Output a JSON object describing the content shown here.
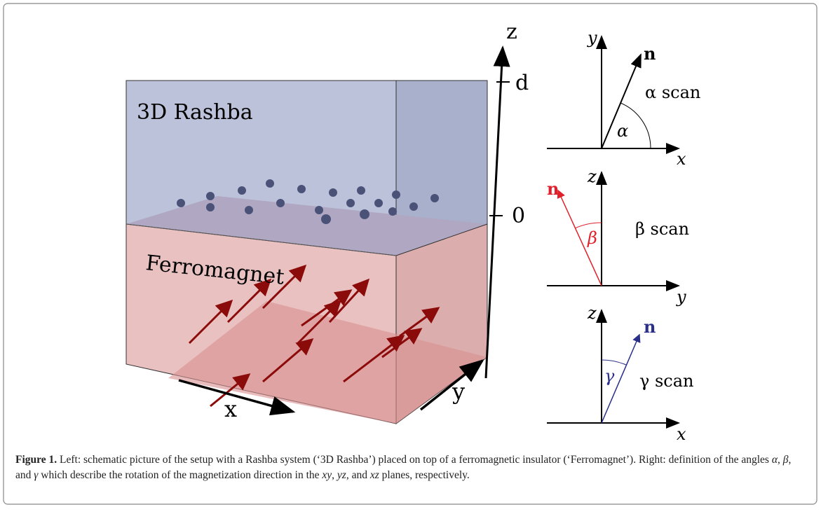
{
  "figure": {
    "left": {
      "z_axis": "z",
      "tick_top": "d",
      "tick_bottom": "0",
      "top_layer": "3D Rashba",
      "bottom_layer": "Ferromagnet",
      "x_axis": "x",
      "y_axis": "y"
    },
    "panels": [
      {
        "vertical": "y",
        "horizontal": "x",
        "vector": "n",
        "scan": "α scan",
        "angle": "α"
      },
      {
        "vertical": "z",
        "horizontal": "y",
        "vector": "n",
        "scan": "β scan",
        "angle": "β"
      },
      {
        "vertical": "z",
        "horizontal": "x",
        "vector": "n",
        "scan": "γ scan",
        "angle": "γ"
      }
    ],
    "caption": {
      "label": "Figure 1.",
      "parts": [
        " Left: schematic picture of the setup with a Rashba system (‘3D Rashba’) placed on top of a ferromagnetic insulator (‘Ferromagnet’). Right: definition of the angles ",
        "α",
        ", ",
        "β",
        ", and ",
        "γ",
        " which describe the rotation of the magnetization direction in the ",
        "xy",
        ", ",
        "yz",
        ", and ",
        "xz",
        " planes, respectively."
      ]
    }
  }
}
